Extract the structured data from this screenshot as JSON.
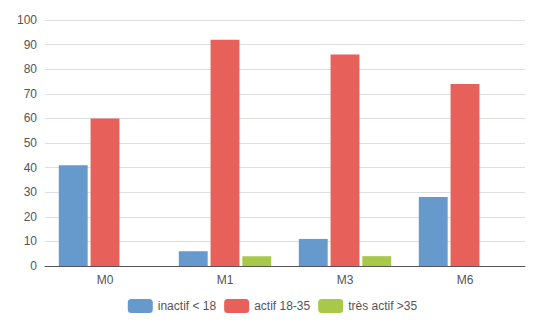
{
  "chart_data": {
    "type": "bar",
    "categories": [
      "M0",
      "M1",
      "M3",
      "M6"
    ],
    "series": [
      {
        "name": "inactif < 18",
        "color": "#6699CC",
        "values": [
          41,
          6,
          11,
          28
        ]
      },
      {
        "name": "actif 18-35",
        "color": "#E8605A",
        "values": [
          60,
          92,
          86,
          74
        ]
      },
      {
        "name": "très actif >35",
        "color": "#A8C84A",
        "values": [
          0,
          4,
          4,
          0
        ]
      }
    ],
    "ylim": [
      0,
      100
    ],
    "yticks": [
      0,
      10,
      20,
      30,
      40,
      50,
      60,
      70,
      80,
      90,
      100
    ],
    "grid": true,
    "legend": "bottom"
  }
}
